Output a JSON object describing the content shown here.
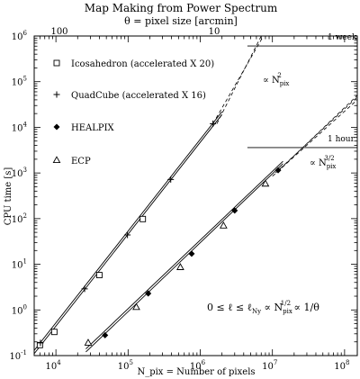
{
  "chart_data": {
    "type": "line",
    "title": "Map Making from Power Spectrum",
    "top_axis_label": "θ = pixel size [arcmin]",
    "top_ticks": [
      "100",
      "10"
    ],
    "xlabel": "N_pix = Number of pixels",
    "ylabel": "CPU time [s]",
    "x_scale": "log",
    "y_scale": "log",
    "xlim": [
      5000,
      150000000
    ],
    "ylim": [
      0.1,
      1000000
    ],
    "x_ticks": [
      10000,
      100000,
      1000000,
      10000000,
      100000000
    ],
    "x_tick_labels": [
      "10^4",
      "10^5",
      "10^6",
      "10^7",
      "10^8"
    ],
    "y_ticks": [
      0.1,
      1,
      10,
      100,
      1000,
      10000,
      100000,
      1000000
    ],
    "y_tick_labels": [
      "10^-1",
      "10^0",
      "10^1",
      "10^2",
      "10^3",
      "10^4",
      "10^5",
      "10^6"
    ],
    "legend_position": "top-left",
    "series": [
      {
        "name": "Icosahedron (accelerated X 20)",
        "marker": "open-square",
        "x": [
          6000,
          9500,
          40000,
          160000
        ],
        "y": [
          0.17,
          0.33,
          5.8,
          98
        ]
      },
      {
        "name": "QuadCube (accelerated X 16)",
        "marker": "plus",
        "x": [
          6100,
          25000,
          98000,
          390000,
          1500000
        ],
        "y": [
          0.19,
          2.9,
          44,
          720,
          12000
        ]
      },
      {
        "name": "HEALPIX",
        "marker": "filled-diamond",
        "x": [
          48000,
          190000,
          760000,
          3000000,
          12000000
        ],
        "y": [
          0.28,
          2.3,
          17,
          150,
          1150
        ]
      },
      {
        "name": "ECP",
        "marker": "open-triangle",
        "x": [
          28000,
          130000,
          530000,
          2100000,
          8000000
        ],
        "y": [
          0.19,
          1.15,
          8.6,
          70,
          580
        ]
      }
    ],
    "fit_lines": [
      {
        "x": [
          5000,
          2000000
        ],
        "y": [
          0.13,
          22000
        ]
      },
      {
        "x": [
          5000,
          2000000
        ],
        "y": [
          0.11,
          19000
        ]
      },
      {
        "x": [
          26000,
          14000000
        ],
        "y": [
          0.14,
          1800
        ]
      },
      {
        "x": [
          26000,
          14000000
        ],
        "y": [
          0.12,
          1600
        ]
      }
    ],
    "extrapolation_lines": [
      {
        "x": [
          1500000,
          7500000
        ],
        "y": [
          12000,
          1000000
        ]
      },
      {
        "x": [
          1700000,
          7000000
        ],
        "y": [
          12000,
          1000000
        ]
      },
      {
        "x": [
          12000000,
          150000000
        ],
        "y": [
          1100,
          50000
        ]
      },
      {
        "x": [
          11000000,
          150000000
        ],
        "y": [
          1000,
          46000
        ]
      },
      {
        "x": [
          10000000,
          150000000
        ],
        "y": [
          850,
          40000
        ]
      }
    ],
    "reference_lines": [
      {
        "label": "1 week",
        "y": 604800,
        "x_range": [
          4500000,
          150000000
        ]
      },
      {
        "label": "1 hour",
        "y": 3600,
        "x_range": [
          4500000,
          150000000
        ]
      }
    ],
    "annotations": {
      "n2": {
        "text": "∝ N",
        "sub": "pix",
        "sup": "2"
      },
      "n32": {
        "text": "∝ N",
        "sub": "pix",
        "sup": "3/2"
      },
      "relation": {
        "part1": "0 ≤ ℓ ≤ ℓ",
        "sub1": "Ny",
        "part2": " ∝ N",
        "sub2": "pix",
        "sup2": "1/2",
        "part3": " ∝ 1/θ"
      }
    }
  }
}
